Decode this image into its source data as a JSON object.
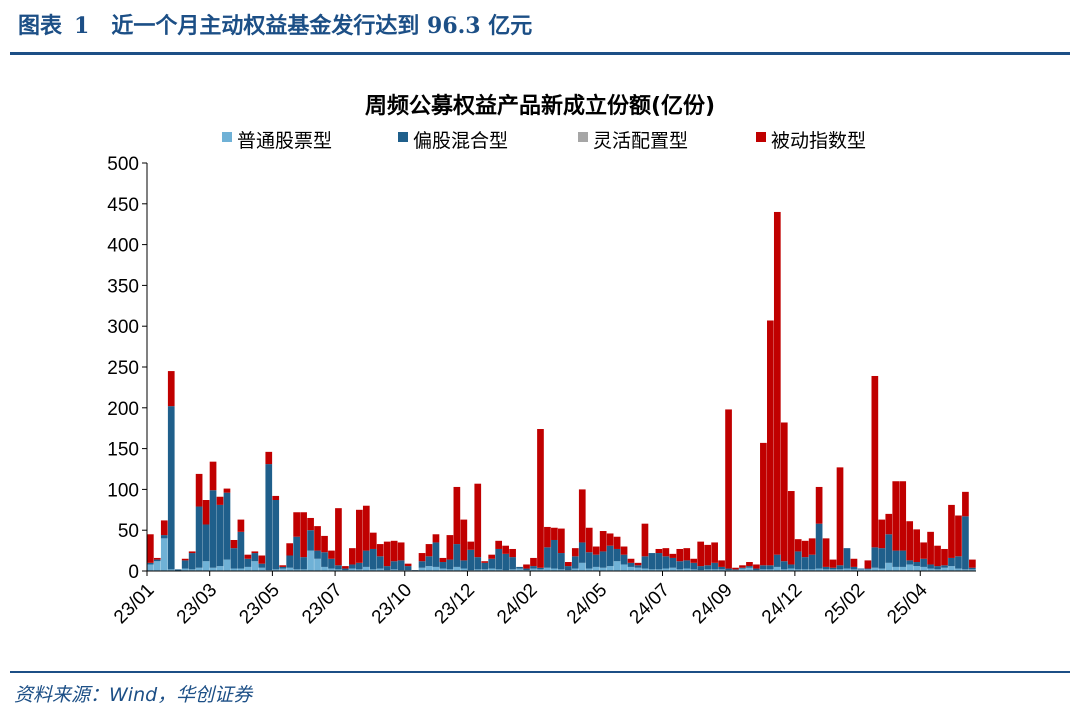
{
  "figure": {
    "label": "图表",
    "number": "1",
    "caption_pre": "近一个月主动权益基金发行达到",
    "caption_value": "96.3",
    "caption_post": "亿元"
  },
  "source": "资料来源：Wind，华创证券",
  "colors": {
    "series_ordinary_stock": "#6fb1d6",
    "series_mixed": "#1f5f8b",
    "series_flexible": "#a6a6a6",
    "series_index": "#c00000",
    "brand": "#1c4f86"
  },
  "chart_data": {
    "type": "bar",
    "stacked": true,
    "title": "周频公募权益产品新成立份额(亿份)",
    "xlabel": "",
    "ylabel": "",
    "ylim": [
      0,
      500
    ],
    "yticks": [
      0,
      50,
      100,
      150,
      200,
      250,
      300,
      350,
      400,
      450,
      500
    ],
    "legend_position": "top",
    "grid": false,
    "x_tick_labels": [
      "23/01",
      "23/03",
      "23/05",
      "23/07",
      "23/10",
      "23/12",
      "24/02",
      "24/05",
      "24/07",
      "24/09",
      "24/12",
      "25/02",
      "25/04"
    ],
    "x_tick_label_week_index": [
      0,
      9,
      18,
      27,
      37,
      46,
      55,
      65,
      74,
      83,
      93,
      102,
      111
    ],
    "series": [
      {
        "name": "普通股票型",
        "values": [
          8,
          12,
          40,
          2,
          0,
          3,
          2,
          4,
          12,
          4,
          6,
          14,
          3,
          3,
          5,
          12,
          4,
          1,
          2,
          3,
          4,
          2,
          2,
          25,
          15,
          5,
          3,
          2,
          1,
          3,
          2,
          5,
          2,
          3,
          1,
          2,
          1,
          1,
          0,
          4,
          6,
          5,
          3,
          2,
          5,
          3,
          1,
          2,
          2,
          3,
          2,
          1,
          2,
          3,
          1,
          3,
          2,
          4,
          3,
          2,
          1,
          3,
          10,
          3,
          5,
          4,
          6,
          12,
          8,
          5,
          4,
          3,
          2,
          2,
          3,
          4,
          2,
          3,
          2,
          1,
          2,
          2,
          2,
          1,
          1,
          3,
          4,
          1,
          2,
          2,
          5,
          2,
          3,
          2,
          2,
          2,
          3,
          2,
          2,
          2,
          3,
          2,
          2,
          2,
          4,
          3,
          10,
          5,
          5,
          8,
          6,
          5,
          3,
          2,
          4,
          6,
          3,
          2,
          2
        ]
      },
      {
        "name": "偏股混合型",
        "values": [
          2,
          2,
          4,
          200,
          2,
          10,
          20,
          75,
          45,
          95,
          75,
          82,
          25,
          45,
          10,
          10,
          5,
          130,
          85,
          2,
          15,
          40,
          15,
          25,
          10,
          18,
          12,
          5,
          2,
          5,
          8,
          20,
          25,
          15,
          5,
          10,
          12,
          5,
          1,
          8,
          12,
          30,
          8,
          12,
          28,
          10,
          25,
          15,
          8,
          12,
          25,
          20,
          15,
          2,
          2,
          3,
          2,
          25,
          35,
          20,
          5,
          15,
          25,
          20,
          15,
          20,
          25,
          15,
          12,
          5,
          3,
          15,
          20,
          20,
          15,
          12,
          10,
          10,
          8,
          5,
          5,
          8,
          3,
          2,
          1,
          1,
          2,
          2,
          5,
          5,
          15,
          10,
          5,
          22,
          15,
          18,
          55,
          3,
          2,
          5,
          25,
          3,
          1,
          1,
          25,
          25,
          35,
          20,
          20,
          5,
          5,
          10,
          5,
          4,
          3,
          10,
          15,
          65,
          2
        ]
      },
      {
        "name": "灵活配置型",
        "values": [
          0,
          0,
          0,
          0,
          0,
          0,
          0,
          0,
          0,
          0,
          0,
          0,
          0,
          0,
          0,
          0,
          0,
          0,
          0,
          0,
          0,
          0,
          0,
          0,
          0,
          0,
          0,
          0,
          0,
          0,
          0,
          0,
          0,
          0,
          0,
          0,
          0,
          0,
          0,
          0,
          0,
          0,
          0,
          0,
          0,
          0,
          0,
          0,
          0,
          0,
          0,
          0,
          0,
          0,
          0,
          0,
          0,
          0,
          0,
          0,
          0,
          0,
          0,
          0,
          0,
          0,
          0,
          0,
          0,
          0,
          0,
          0,
          0,
          0,
          0,
          0,
          0,
          0,
          0,
          0,
          0,
          0,
          0,
          0,
          0,
          0,
          0,
          0,
          0,
          0,
          0,
          0,
          0,
          0,
          0,
          0,
          0,
          0,
          0,
          0,
          0,
          0,
          0,
          0,
          0,
          0,
          0,
          0,
          0,
          0,
          0,
          0,
          0,
          0,
          0,
          0,
          0,
          0,
          0
        ]
      },
      {
        "name": "被动指数型",
        "values": [
          35,
          2,
          18,
          43,
          0,
          2,
          2,
          40,
          30,
          35,
          10,
          5,
          10,
          15,
          5,
          2,
          10,
          15,
          5,
          2,
          15,
          30,
          55,
          15,
          30,
          20,
          10,
          70,
          3,
          20,
          65,
          55,
          20,
          15,
          30,
          25,
          22,
          3,
          0,
          10,
          15,
          10,
          5,
          30,
          70,
          50,
          10,
          90,
          2,
          5,
          10,
          10,
          10,
          0,
          5,
          10,
          170,
          25,
          15,
          30,
          5,
          10,
          65,
          30,
          10,
          25,
          15,
          15,
          10,
          5,
          3,
          40,
          0,
          5,
          10,
          5,
          15,
          15,
          5,
          30,
          25,
          25,
          8,
          195,
          2,
          3,
          5,
          5,
          150,
          300,
          420,
          170,
          90,
          15,
          20,
          20,
          45,
          35,
          10,
          120,
          0,
          10,
          0,
          10,
          210,
          35,
          25,
          85,
          85,
          48,
          40,
          20,
          40,
          25,
          20,
          65,
          50,
          30,
          10
        ]
      }
    ]
  }
}
